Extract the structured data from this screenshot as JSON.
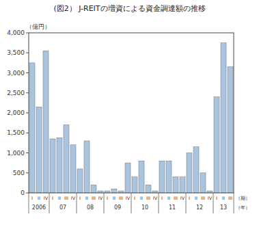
{
  "chart_data": {
    "type": "bar",
    "title": "(図2） J-REITの増資による資金調達額の推移",
    "ylabel": "（億円）",
    "xlabel": "（期）",
    "categories": [
      "I",
      "II",
      "IV",
      "I",
      "II",
      "III",
      "IV",
      "I",
      "II",
      "III",
      "IV",
      "I",
      "II",
      "III",
      "IV",
      "I",
      "II",
      "III",
      "IV",
      "I",
      "II",
      "III",
      "IV",
      "I",
      "II",
      "III",
      "IV",
      "I",
      "II",
      "III"
    ],
    "values": [
      3250,
      2150,
      3550,
      1350,
      1380,
      1700,
      1200,
      600,
      1300,
      200,
      50,
      50,
      100,
      50,
      750,
      400,
      800,
      200,
      50,
      800,
      800,
      400,
      400,
      1000,
      1150,
      500,
      50,
      2400,
      3750,
      3150
    ],
    "groups": {
      "label": "（年）",
      "items": [
        {
          "label": "2006",
          "count": 3
        },
        {
          "label": "07",
          "count": 4
        },
        {
          "label": "08",
          "count": 4
        },
        {
          "label": "09",
          "count": 4
        },
        {
          "label": "10",
          "count": 4
        },
        {
          "label": "11",
          "count": 4
        },
        {
          "label": "12",
          "count": 4
        },
        {
          "label": "13",
          "count": 3
        }
      ]
    },
    "color": "#a8c4df",
    "ylim": [
      0,
      4000
    ],
    "yticks": [
      0,
      500,
      {
        "value": 1000,
        "label": "1,000"
      },
      {
        "value": 1500,
        "label": "1,500"
      },
      {
        "value": 2000,
        "label": "2,000"
      },
      {
        "value": 2500,
        "label": "2,500"
      },
      {
        "value": 3000,
        "label": "3,000"
      },
      {
        "value": 3500,
        "label": "3,500"
      },
      {
        "value": 4000,
        "label": "4,000"
      }
    ],
    "grid": false
  }
}
